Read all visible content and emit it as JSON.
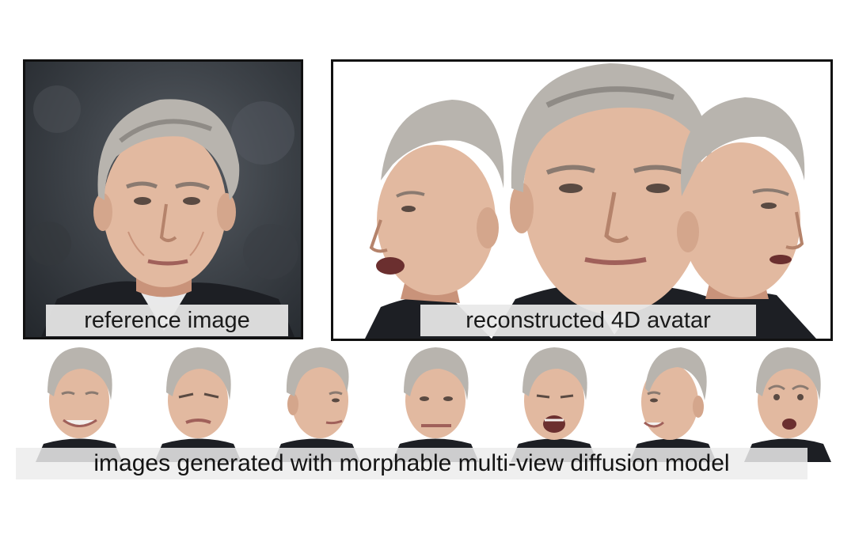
{
  "reference": {
    "caption": "reference image"
  },
  "avatar": {
    "caption": "reconstructed 4D avatar"
  },
  "strip": {
    "caption": "images generated with morphable multi-view diffusion model",
    "thumbnails": [
      {
        "label": "smiling"
      },
      {
        "label": "squinting"
      },
      {
        "label": "profile-right"
      },
      {
        "label": "lips-pressed"
      },
      {
        "label": "mouth-open-shout"
      },
      {
        "label": "profile-left-smile"
      },
      {
        "label": "surprised"
      }
    ]
  },
  "colors": {
    "skin": "#e2b9a0",
    "skin_shadow": "#c9937a",
    "hair": "#b8b4ae",
    "hair_dark": "#8f8b86",
    "suit": "#1d1f24",
    "shirt": "#e9e9ea",
    "frame": "#111111"
  }
}
